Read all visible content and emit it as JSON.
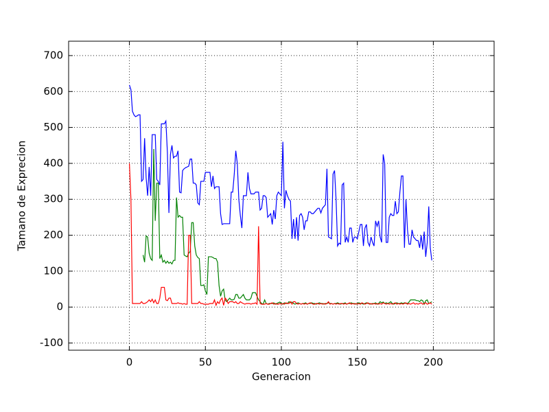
{
  "chart_data": {
    "type": "line",
    "xlabel": "Generacion",
    "ylabel": "Tamano de Exprecion",
    "xlim": [
      -40,
      240
    ],
    "ylim": [
      -120,
      740
    ],
    "xticks": [
      0,
      50,
      100,
      150,
      200
    ],
    "yticks": [
      -100,
      0,
      100,
      200,
      300,
      400,
      500,
      600,
      700
    ],
    "grid": true,
    "x": [
      0,
      1,
      2,
      3,
      4,
      5,
      6,
      7,
      8,
      9,
      10,
      11,
      12,
      13,
      14,
      15,
      16,
      17,
      18,
      19,
      20,
      21,
      22,
      23,
      24,
      25,
      26,
      27,
      28,
      29,
      30,
      31,
      32,
      33,
      34,
      35,
      36,
      37,
      38,
      39,
      40,
      41,
      42,
      43,
      44,
      45,
      46,
      47,
      48,
      49,
      50,
      51,
      52,
      53,
      54,
      55,
      56,
      57,
      58,
      59,
      60,
      61,
      62,
      63,
      64,
      65,
      66,
      67,
      68,
      69,
      70,
      71,
      72,
      73,
      74,
      75,
      76,
      77,
      78,
      79,
      80,
      81,
      82,
      83,
      84,
      85,
      86,
      87,
      88,
      89,
      90,
      91,
      92,
      93,
      94,
      95,
      96,
      97,
      98,
      99,
      100,
      101,
      102,
      103,
      104,
      105,
      106,
      107,
      108,
      109,
      110,
      111,
      112,
      113,
      114,
      115,
      116,
      117,
      118,
      119,
      120,
      121,
      122,
      123,
      124,
      125,
      126,
      127,
      128,
      129,
      130,
      131,
      132,
      133,
      134,
      135,
      136,
      137,
      138,
      139,
      140,
      141,
      142,
      143,
      144,
      145,
      146,
      147,
      148,
      149,
      150,
      151,
      152,
      153,
      154,
      155,
      156,
      157,
      158,
      159,
      160,
      161,
      162,
      163,
      164,
      165,
      166,
      167,
      168,
      169,
      170,
      171,
      172,
      173,
      174,
      175,
      176,
      177,
      178,
      179,
      180,
      181,
      182,
      183,
      184,
      185,
      186,
      187,
      188,
      189,
      190,
      191,
      192,
      193,
      194,
      195,
      196,
      197,
      198,
      199
    ],
    "series": [
      {
        "color": "#0000ff",
        "values": [
          618,
          605,
          545,
          535,
          530,
          532,
          535,
          535,
          350,
          355,
          470,
          360,
          310,
          390,
          310,
          480,
          480,
          480,
          355,
          350,
          340,
          510,
          510,
          510,
          518,
          430,
          262,
          425,
          450,
          415,
          420,
          420,
          435,
          320,
          318,
          380,
          385,
          388,
          390,
          392,
          412,
          412,
          345,
          345,
          340,
          290,
          285,
          350,
          350,
          350,
          375,
          375,
          375,
          375,
          335,
          365,
          330,
          335,
          335,
          335,
          260,
          230,
          232,
          232,
          232,
          232,
          232,
          320,
          320,
          370,
          435,
          400,
          300,
          255,
          220,
          310,
          310,
          310,
          375,
          330,
          315,
          315,
          315,
          320,
          320,
          320,
          270,
          275,
          310,
          310,
          305,
          250,
          255,
          260,
          230,
          270,
          245,
          310,
          320,
          315,
          310,
          460,
          275,
          325,
          310,
          300,
          295,
          190,
          245,
          190,
          250,
          185,
          255,
          260,
          250,
          215,
          240,
          240,
          265,
          265,
          260,
          260,
          265,
          270,
          275,
          275,
          262,
          275,
          280,
          285,
          385,
          195,
          193,
          190,
          370,
          380,
          300,
          170,
          178,
          175,
          340,
          345,
          180,
          195,
          180,
          220,
          220,
          180,
          195,
          195,
          190,
          210,
          230,
          230,
          170,
          220,
          230,
          180,
          170,
          195,
          180,
          170,
          240,
          225,
          240,
          195,
          180,
          425,
          400,
          180,
          180,
          250,
          260,
          255,
          255,
          295,
          260,
          265,
          320,
          365,
          365,
          165,
          300,
          215,
          175,
          175,
          215,
          195,
          190,
          185,
          185,
          165,
          200,
          160,
          210,
          140,
          180,
          280,
          165,
          130
        ]
      },
      {
        "color": "#008000",
        "values": [
          null,
          null,
          null,
          null,
          null,
          null,
          null,
          null,
          null,
          145,
          125,
          198,
          195,
          150,
          135,
          130,
          440,
          240,
          345,
          345,
          135,
          145,
          125,
          130,
          122,
          128,
          122,
          125,
          120,
          130,
          130,
          305,
          250,
          255,
          250,
          250,
          145,
          142,
          140,
          150,
          155,
          235,
          235,
          170,
          145,
          138,
          135,
          60,
          60,
          62,
          45,
          35,
          140,
          140,
          140,
          138,
          135,
          135,
          125,
          60,
          30,
          45,
          50,
          20,
          15,
          20,
          25,
          20,
          20,
          22,
          35,
          35,
          25,
          25,
          30,
          35,
          25,
          20,
          20,
          20,
          25,
          40,
          40,
          40,
          30,
          20,
          15,
          10,
          8,
          20,
          10,
          8,
          10,
          10,
          10,
          12,
          8,
          10,
          12,
          14,
          10,
          8,
          12,
          10,
          10,
          15,
          12,
          14,
          10,
          8,
          10,
          12,
          10,
          8,
          10,
          10,
          12,
          8,
          10,
          10,
          12,
          10,
          10,
          8,
          10,
          12,
          10,
          10,
          8,
          10,
          10,
          12,
          10,
          10,
          8,
          10,
          10,
          12,
          10,
          8,
          10,
          10,
          12,
          8,
          10,
          10,
          12,
          10,
          10,
          8,
          10,
          12,
          10,
          10,
          8,
          10,
          12,
          10,
          10,
          8,
          10,
          10,
          12,
          8,
          10,
          15,
          12,
          14,
          10,
          12,
          10,
          12,
          15,
          10,
          8,
          10,
          12,
          10,
          10,
          12,
          10,
          12,
          10,
          10,
          14,
          20,
          20,
          20,
          20,
          18,
          18,
          15,
          20,
          18,
          8,
          18,
          20,
          10,
          12,
          15
        ]
      },
      {
        "color": "#ff0000",
        "values": [
          400,
          300,
          10,
          10,
          10,
          10,
          10,
          10,
          15,
          10,
          10,
          12,
          15,
          20,
          15,
          22,
          12,
          20,
          10,
          10,
          25,
          55,
          55,
          55,
          20,
          18,
          25,
          25,
          10,
          10,
          10,
          10,
          12,
          10,
          10,
          8,
          10,
          8,
          8,
          200,
          200,
          10,
          10,
          10,
          10,
          10,
          15,
          10,
          10,
          8,
          8,
          8,
          8,
          10,
          10,
          10,
          20,
          5,
          15,
          10,
          20,
          25,
          5,
          25,
          20,
          10,
          15,
          15,
          15,
          12,
          15,
          10,
          10,
          15,
          12,
          10,
          8,
          10,
          10,
          10,
          8,
          10,
          10,
          12,
          8,
          225,
          10,
          8,
          8,
          8,
          10,
          8,
          8,
          10,
          12,
          8,
          10,
          8,
          8,
          10,
          8,
          10,
          8,
          12,
          10,
          10,
          15,
          8,
          15,
          15,
          10,
          8,
          10,
          8,
          10,
          8,
          10,
          8,
          10,
          12,
          10,
          8,
          8,
          10,
          10,
          8,
          10,
          8,
          10,
          8,
          10,
          15,
          8,
          10,
          8,
          10,
          8,
          10,
          8,
          10,
          10,
          8,
          10,
          8,
          10,
          12,
          8,
          10,
          8,
          10,
          8,
          10,
          8,
          12,
          10,
          8,
          10,
          12,
          8,
          10,
          8,
          10,
          8,
          10,
          8,
          10,
          8,
          12,
          10,
          8,
          10,
          8,
          10,
          8,
          10,
          12,
          8,
          10,
          8,
          10,
          8,
          10,
          12,
          8,
          10,
          8,
          10,
          12,
          8,
          10,
          8,
          10,
          12,
          8,
          10,
          12,
          8,
          10,
          12,
          8
        ]
      }
    ]
  }
}
